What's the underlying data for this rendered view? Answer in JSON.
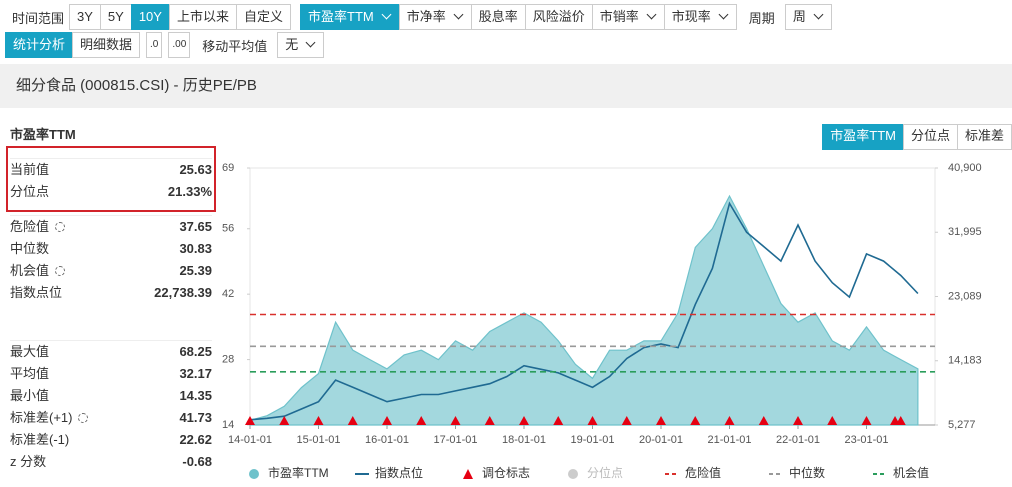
{
  "toolbar": {
    "time_label": "时间范围",
    "time_buttons": [
      "3Y",
      "5Y",
      "10Y",
      "上市以来",
      "自定义"
    ],
    "time_active": 2,
    "metrics": [
      "市盈率TTM",
      "市净率",
      "股息率",
      "风险溢价",
      "市销率",
      "市现率"
    ],
    "metric_dropdown": [
      true,
      true,
      false,
      false,
      true,
      true
    ],
    "metric_active": 0,
    "period_label": "周期",
    "period": "周",
    "tabs": [
      "统计分析",
      "明细数据"
    ],
    "tab_active": 0,
    "decimal_buttons": [
      ".0",
      ".00"
    ],
    "ma_label": "移动平均值",
    "ma_value": "无"
  },
  "header": {
    "title": "细分食品 (000815.CSI) - 历史PE/PB"
  },
  "stats": {
    "title": "市盈率TTM",
    "groups": [
      [
        {
          "label": "当前值",
          "value": "25.63"
        },
        {
          "label": "分位点",
          "value": "21.33%"
        }
      ],
      [
        {
          "label": "危险值",
          "value": "37.65",
          "gear": true
        },
        {
          "label": "中位数",
          "value": "30.83"
        },
        {
          "label": "机会值",
          "value": "25.39",
          "gear": true
        },
        {
          "label": "指数点位",
          "value": "22,738.39"
        }
      ],
      [
        {
          "label": "最大值",
          "value": "68.25"
        },
        {
          "label": "平均值",
          "value": "32.17"
        },
        {
          "label": "最小值",
          "value": "14.35"
        },
        {
          "label": "标准差(+1)",
          "value": "41.73",
          "gear": true
        },
        {
          "label": "标准差(-1)",
          "value": "22.62"
        },
        {
          "label": "z 分数",
          "value": "-0.68"
        }
      ]
    ]
  },
  "chart_tabs": [
    "市盈率TTM",
    "分位点",
    "标准差"
  ],
  "chart_tab_active": 0,
  "chart_data": {
    "type": "line",
    "x": [
      "14-01-01",
      "14-04-01",
      "14-07-01",
      "14-10-01",
      "15-01-01",
      "15-04-01",
      "15-07-01",
      "15-10-01",
      "16-01-01",
      "16-04-01",
      "16-07-01",
      "16-10-01",
      "17-01-01",
      "17-04-01",
      "17-07-01",
      "17-10-01",
      "18-01-01",
      "18-04-01",
      "18-07-01",
      "18-10-01",
      "19-01-01",
      "19-04-01",
      "19-07-01",
      "19-10-01",
      "20-01-01",
      "20-04-01",
      "20-07-01",
      "20-10-01",
      "21-01-01",
      "21-04-01",
      "21-07-01",
      "21-10-01",
      "22-01-01",
      "22-04-01",
      "22-07-01",
      "22-10-01",
      "23-01-01",
      "23-04-01",
      "23-07-01",
      "23-10-01"
    ],
    "series": [
      {
        "name": "市盈率TTM",
        "kind": "area",
        "color": "#a3d8de",
        "stroke": "#6fc2cb",
        "axis": "y",
        "values": [
          15,
          16,
          18,
          22,
          25,
          36,
          30,
          28,
          26,
          29,
          30,
          28,
          32,
          30,
          34,
          36,
          38,
          36,
          32,
          27,
          24,
          30,
          30,
          32,
          32,
          38,
          52,
          56,
          63,
          56,
          48,
          40,
          36,
          38,
          32,
          30,
          35,
          30,
          28,
          26
        ]
      },
      {
        "name": "指数点位",
        "kind": "line",
        "color": "#1f6a92",
        "axis": "y2",
        "values": [
          6000,
          6200,
          6500,
          7500,
          8500,
          11500,
          10500,
          9500,
          8500,
          9000,
          9500,
          9500,
          10000,
          10500,
          11000,
          12000,
          13500,
          13000,
          12500,
          11500,
          10500,
          12000,
          14500,
          16000,
          16500,
          16000,
          22000,
          27000,
          36000,
          32000,
          30000,
          28000,
          33000,
          28000,
          25000,
          23000,
          29000,
          28000,
          26000,
          23500
        ]
      }
    ],
    "rebalance": {
      "name": "调仓标志",
      "color": "#e60012",
      "dates": [
        "14-01-01",
        "14-07-01",
        "15-01-01",
        "15-07-01",
        "16-01-01",
        "16-07-01",
        "17-01-01",
        "17-07-01",
        "18-01-01",
        "18-07-01",
        "19-01-01",
        "19-07-01",
        "20-01-01",
        "20-07-01",
        "21-01-01",
        "21-07-01",
        "22-01-01",
        "22-07-01",
        "23-01-01",
        "23-06-01",
        "23-07-01"
      ]
    },
    "inactive_legend": {
      "name": "分位点",
      "color": "#cccccc"
    },
    "ref_lines": [
      {
        "name": "危险值",
        "value": 37.65,
        "color": "#d9302c"
      },
      {
        "name": "中位数",
        "value": 30.83,
        "color": "#999999"
      },
      {
        "name": "机会值",
        "value": 25.39,
        "color": "#2a9d5c"
      }
    ],
    "xlim": [
      "14-01-01",
      "24-01-01"
    ],
    "xticks": [
      "14-01-01",
      "15-01-01",
      "16-01-01",
      "17-01-01",
      "18-01-01",
      "19-01-01",
      "20-01-01",
      "21-01-01",
      "22-01-01",
      "23-01-01"
    ],
    "ylim": [
      14,
      69
    ],
    "yticks": [
      14,
      28,
      42,
      56,
      69
    ],
    "y2lim": [
      5277,
      40900
    ],
    "y2ticks": [
      {
        "value": 5277,
        "label": "5,277"
      },
      {
        "value": 14183,
        "label": "14,183"
      },
      {
        "value": 23089,
        "label": "23,089"
      },
      {
        "value": 31995,
        "label": "31,995"
      },
      {
        "value": 40900,
        "label": "40,900"
      }
    ]
  }
}
